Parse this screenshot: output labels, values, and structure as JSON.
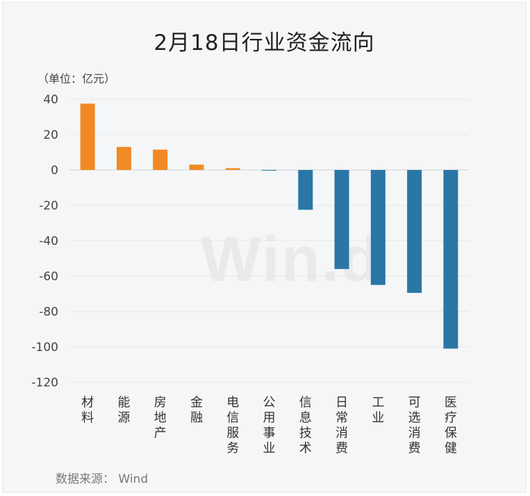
{
  "chart_data": {
    "type": "bar",
    "title": "2月18日行业资金流向",
    "unit_note": "（单位：亿元）",
    "source_note": "数据来源：  Wind",
    "watermark": "Win.d",
    "categories": [
      "材料",
      "能源",
      "房地产",
      "金融",
      "电信服务",
      "公用事业",
      "信息技术",
      "日常消费",
      "工业",
      "可选消费",
      "医疗保健"
    ],
    "values": [
      37.5,
      13,
      11.5,
      3,
      1,
      -0.3,
      -22.5,
      -56,
      -65,
      -69.5,
      -101
    ],
    "yticks": [
      40,
      20,
      0,
      -20,
      -40,
      -60,
      -80,
      -100,
      -120
    ],
    "ylim": [
      -120,
      40
    ],
    "colors": {
      "positive": "#f08a24",
      "negative": "#2a77a6"
    },
    "grid": true
  }
}
